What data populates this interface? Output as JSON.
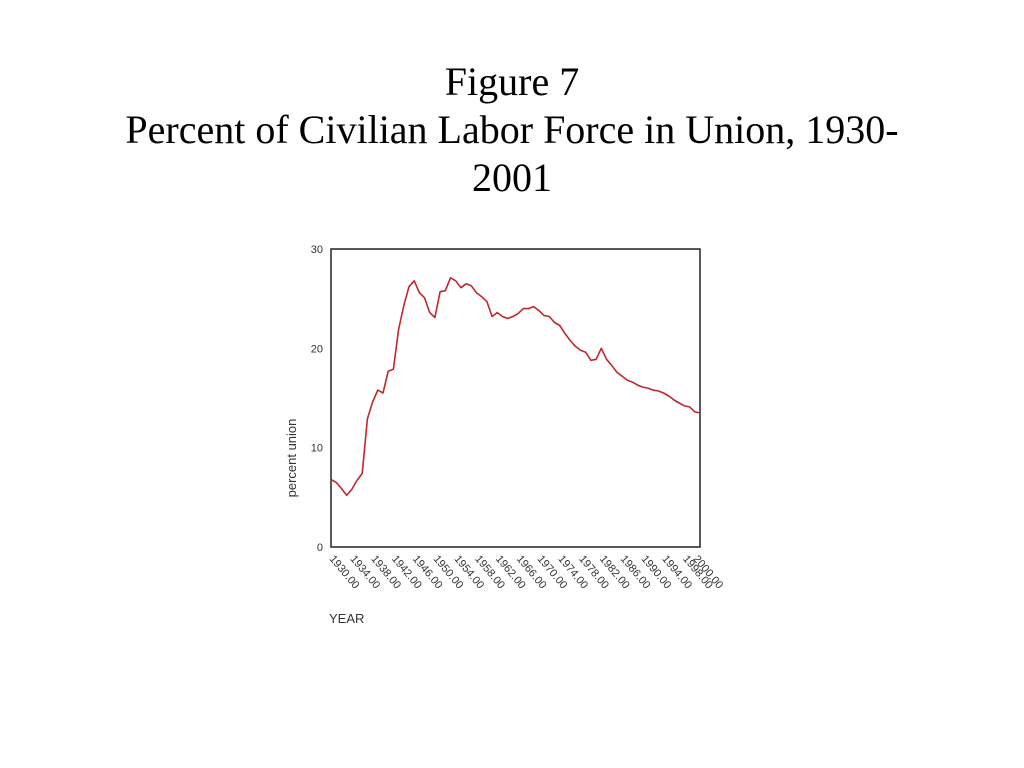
{
  "figure": {
    "label": "Figure 7",
    "title_line1": "Percent of Civilian Labor Force in Union, 1930-",
    "title_line2": "2001"
  },
  "chart_data": {
    "type": "line",
    "xlabel": "YEAR",
    "ylabel": "percent union",
    "xlim": [
      1930,
      2001
    ],
    "ylim": [
      0,
      30
    ],
    "y_ticks": [
      "0",
      "10",
      "20",
      "30"
    ],
    "x_ticks": [
      "1930.00",
      "1934.00",
      "1938.00",
      "1942.00",
      "1946.00",
      "1950.00",
      "1954.00",
      "1958.00",
      "1962.00",
      "1966.00",
      "1970.00",
      "1974.00",
      "1978.00",
      "1982.00",
      "1986.00",
      "1990.00",
      "1994.00",
      "1998.00",
      "2000.00"
    ],
    "x_tick_values": [
      1930,
      1934,
      1938,
      1942,
      1946,
      1950,
      1954,
      1958,
      1962,
      1966,
      1970,
      1974,
      1978,
      1982,
      1986,
      1990,
      1994,
      1998,
      2000
    ],
    "grid": false,
    "line_color": "#c0282d",
    "series": [
      {
        "x": [
          1930,
          1931,
          1932,
          1933,
          1934,
          1935,
          1936,
          1937,
          1938,
          1939,
          1940,
          1941,
          1942,
          1943,
          1944,
          1945,
          1946,
          1947,
          1948,
          1949,
          1950,
          1951,
          1952,
          1953,
          1954,
          1955,
          1956,
          1957,
          1958,
          1959,
          1960,
          1961,
          1962,
          1963,
          1964,
          1965,
          1966,
          1967,
          1968,
          1969,
          1970,
          1971,
          1972,
          1973,
          1974,
          1975,
          1976,
          1977,
          1978,
          1979,
          1980,
          1981,
          1982,
          1983,
          1984,
          1985,
          1986,
          1987,
          1988,
          1989,
          1990,
          1991,
          1992,
          1993,
          1994,
          1995,
          1996,
          1997,
          1998,
          1999,
          2000,
          2001
        ],
        "y": [
          6.8,
          6.5,
          5.9,
          5.2,
          5.8,
          6.7,
          7.4,
          12.9,
          14.6,
          15.8,
          15.5,
          17.7,
          17.9,
          21.9,
          24.3,
          26.2,
          26.8,
          25.6,
          25.1,
          23.6,
          23.1,
          25.7,
          25.8,
          27.1,
          26.8,
          26.1,
          26.5,
          26.3,
          25.6,
          25.2,
          24.7,
          23.2,
          23.6,
          23.2,
          23.0,
          23.2,
          23.5,
          24.0,
          24.0,
          24.2,
          23.8,
          23.3,
          23.2,
          22.6,
          22.3,
          21.5,
          20.8,
          20.2,
          19.8,
          19.6,
          18.8,
          18.9,
          20.0,
          18.9,
          18.3,
          17.6,
          17.2,
          16.8,
          16.6,
          16.3,
          16.1,
          16.0,
          15.8,
          15.7,
          15.5,
          15.2,
          14.8,
          14.5,
          14.2,
          14.1,
          13.6,
          13.5
        ]
      }
    ]
  }
}
